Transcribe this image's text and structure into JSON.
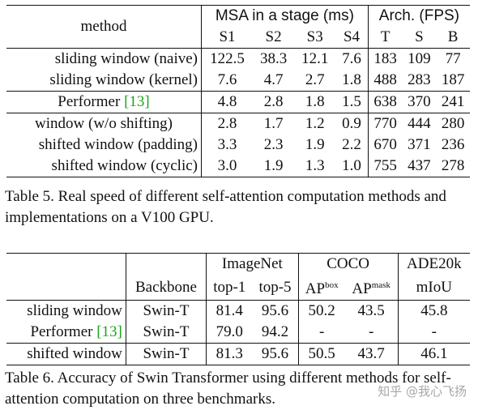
{
  "table5": {
    "header": {
      "method": "method",
      "msa_group": "MSA in a stage (ms)",
      "arch_group": "Arch. (FPS)",
      "stages": [
        "S1",
        "S2",
        "S3",
        "S4"
      ],
      "archs": [
        "T",
        "S",
        "B"
      ]
    },
    "rows": [
      {
        "method": "sliding window (naive)",
        "ref": "",
        "s1": "122.5",
        "s2": "38.3",
        "s3": "12.1",
        "s4": "7.6",
        "t": "183",
        "s": "109",
        "b": "77"
      },
      {
        "method": "sliding window (kernel)",
        "ref": "",
        "s1": "7.6",
        "s2": "4.7",
        "s3": "2.7",
        "s4": "1.8",
        "t": "488",
        "s": "283",
        "b": "187"
      },
      {
        "method": "Performer ",
        "ref": "[13]",
        "s1": "4.8",
        "s2": "2.8",
        "s3": "1.8",
        "s4": "1.5",
        "t": "638",
        "s": "370",
        "b": "241"
      },
      {
        "method": "window (w/o shifting)",
        "ref": "",
        "s1": "2.8",
        "s2": "1.7",
        "s3": "1.2",
        "s4": "0.9",
        "t": "770",
        "s": "444",
        "b": "280"
      },
      {
        "method": "shifted window (padding)",
        "ref": "",
        "s1": "3.3",
        "s2": "2.3",
        "s3": "1.9",
        "s4": "2.2",
        "t": "670",
        "s": "371",
        "b": "236"
      },
      {
        "method": "shifted window (cyclic)",
        "ref": "",
        "s1": "3.0",
        "s2": "1.9",
        "s3": "1.3",
        "s4": "1.0",
        "t": "755",
        "s": "437",
        "b": "278"
      }
    ],
    "caption": "Table 5. Real speed of different self-attention computation methods and implementations on a V100 GPU."
  },
  "table6": {
    "header": {
      "backbone": "Backbone",
      "imagenet": "ImageNet",
      "coco": "COCO",
      "ade": "ADE20k",
      "top1": "top-1",
      "top5": "top-5",
      "ap": "AP",
      "box": "box",
      "mask": "mask",
      "miou": "mIoU"
    },
    "rows": [
      {
        "method": "sliding window",
        "ref": "",
        "backbone": "Swin-T",
        "top1": "81.4",
        "top5": "95.6",
        "apbox": "50.2",
        "apmask": "43.5",
        "miou": "45.8"
      },
      {
        "method": "Performer ",
        "ref": "[13]",
        "backbone": "Swin-T",
        "top1": "79.0",
        "top5": "94.2",
        "apbox": "-",
        "apmask": "-",
        "miou": "-"
      },
      {
        "method": "shifted window",
        "ref": "",
        "backbone": "Swin-T",
        "top1": "81.3",
        "top5": "95.6",
        "apbox": "50.5",
        "apmask": "43.7",
        "miou": "46.1"
      }
    ],
    "caption": "Table 6. Accuracy of Swin Transformer using different methods for self-attention computation on three benchmarks."
  },
  "watermark": "知乎 @我心飞扬",
  "colors": {
    "citation": "#1aa61a",
    "text": "#111111"
  }
}
